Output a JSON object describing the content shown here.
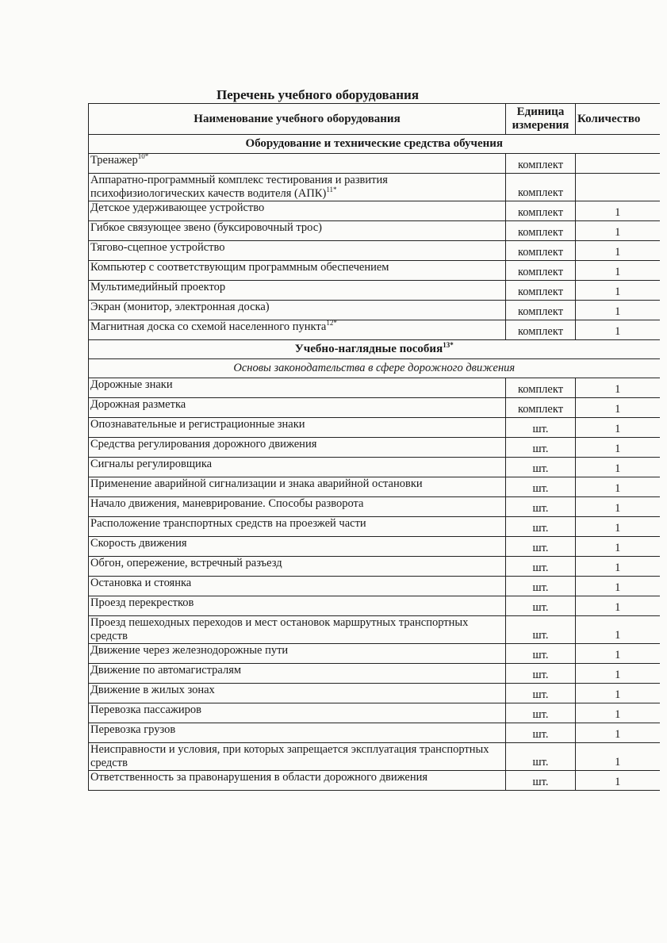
{
  "title": "Перечень учебного оборудования",
  "headers": {
    "name": "Наименование учебного оборудования",
    "unit": "Единица измерения",
    "qty": "Количество"
  },
  "section1": {
    "label": "Оборудование и технические средства обучения",
    "items": [
      {
        "name": "Тренажер",
        "sup": "10*",
        "unit": "комплект",
        "qty": ""
      },
      {
        "name": "Аппаратно-программный комплекс тестирования и развития психофизиологических качеств водителя (АПК)",
        "sup": "11*",
        "unit": "комплект",
        "qty": ""
      },
      {
        "name": "Детское удерживающее устройство",
        "sup": "",
        "unit": "комплект",
        "qty": "1"
      },
      {
        "name": "Гибкое связующее звено (буксировочный трос)",
        "sup": "",
        "unit": "комплект",
        "qty": "1"
      },
      {
        "name": "Тягово-сцепное устройство",
        "sup": "",
        "unit": "комплект",
        "qty": "1"
      },
      {
        "name": "Компьютер с соответствующим программным обеспечением",
        "sup": "",
        "unit": "комплект",
        "qty": "1"
      },
      {
        "name": "Мультимедийный проектор",
        "sup": "",
        "unit": "комплект",
        "qty": "1"
      },
      {
        "name": "Экран (монитор, электронная доска)",
        "sup": "",
        "unit": "комплект",
        "qty": "1"
      },
      {
        "name": "Магнитная доска со схемой населенного пункта",
        "sup": "12*",
        "unit": "комплект",
        "qty": "1"
      }
    ]
  },
  "section2": {
    "label": "Учебно-наглядные пособия",
    "sup": "13*",
    "subsection": "Основы законодательства в сфере дорожного движения",
    "items": [
      {
        "name": "Дорожные знаки",
        "unit": "комплект",
        "qty": "1"
      },
      {
        "name": "Дорожная разметка",
        "unit": "комплект",
        "qty": "1"
      },
      {
        "name": "Опознавательные и регистрационные знаки",
        "unit": "шт.",
        "qty": "1"
      },
      {
        "name": "Средства регулирования дорожного движения",
        "unit": "шт.",
        "qty": "1"
      },
      {
        "name": "Сигналы регулировщика",
        "unit": "шт.",
        "qty": "1"
      },
      {
        "name": "Применение аварийной сигнализации и знака аварийной остановки",
        "unit": "шт.",
        "qty": "1"
      },
      {
        "name": "Начало движения, маневрирование. Способы разворота",
        "unit": "шт.",
        "qty": "1"
      },
      {
        "name": "Расположение транспортных средств на проезжей части",
        "unit": "шт.",
        "qty": "1"
      },
      {
        "name": "Скорость движения",
        "unit": "шт.",
        "qty": "1"
      },
      {
        "name": "Обгон, опережение, встречный разъезд",
        "unit": "шт.",
        "qty": "1"
      },
      {
        "name": "Остановка и стоянка",
        "unit": "шт.",
        "qty": "1"
      },
      {
        "name": "Проезд перекрестков",
        "unit": "шт.",
        "qty": "1"
      },
      {
        "name": "Проезд пешеходных переходов и мест остановок маршрутных транспортных средств",
        "unit": "шт.",
        "qty": "1"
      },
      {
        "name": "Движение через железнодорожные пути",
        "unit": "шт.",
        "qty": "1"
      },
      {
        "name": "Движение по автомагистралям",
        "unit": "шт.",
        "qty": "1"
      },
      {
        "name": "Движение в жилых зонах",
        "unit": "шт.",
        "qty": "1"
      },
      {
        "name": "Перевозка пассажиров",
        "unit": "шт.",
        "qty": "1"
      },
      {
        "name": "Перевозка грузов",
        "unit": "шт.",
        "qty": "1"
      },
      {
        "name": "Неисправности и условия, при которых запрещается эксплуатация транспортных средств",
        "unit": "шт.",
        "qty": "1"
      },
      {
        "name": "Ответственность за правонарушения в области дорожного движения",
        "unit": "шт.",
        "qty": "1"
      }
    ]
  }
}
